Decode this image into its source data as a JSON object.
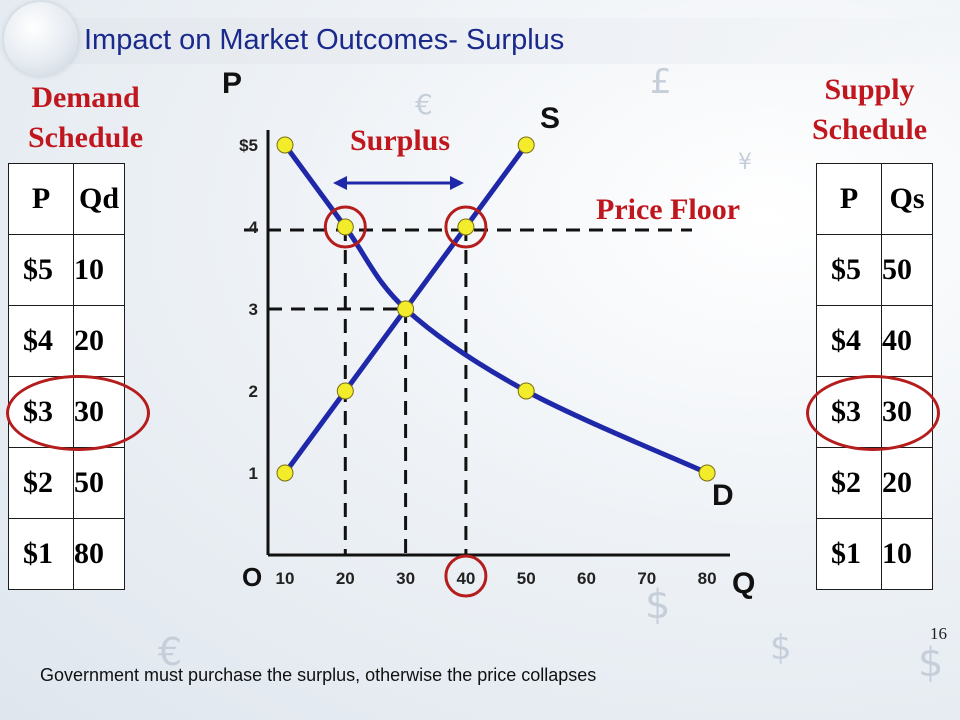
{
  "title": "Impact on Market Outcomes- Surplus",
  "demand_schedule": {
    "heading_line1": "Demand",
    "heading_line2": "Schedule",
    "columns": [
      "P",
      "Qd"
    ],
    "rows": [
      [
        "$5",
        "10"
      ],
      [
        "$4",
        "20"
      ],
      [
        "$3",
        "30"
      ],
      [
        "$2",
        "50"
      ],
      [
        "$1",
        "80"
      ]
    ]
  },
  "supply_schedule": {
    "heading_line1": "Supply",
    "heading_line2": "Schedule",
    "columns": [
      "P",
      "Qs"
    ],
    "rows": [
      [
        "$5",
        "50"
      ],
      [
        "$4",
        "40"
      ],
      [
        "$3",
        "30"
      ],
      [
        "$2",
        "20"
      ],
      [
        "$1",
        "10"
      ]
    ]
  },
  "chart_data": {
    "type": "line",
    "title": "",
    "ylabel": "P",
    "xlabel": "Q",
    "origin_label": "O",
    "xlim": [
      10,
      80
    ],
    "ylim": [
      0,
      5
    ],
    "x_ticks": [
      "10",
      "20",
      "30",
      "40",
      "50",
      "60",
      "70",
      "80"
    ],
    "y_ticks": [
      "1",
      "2",
      "3",
      "4",
      "$5"
    ],
    "series": [
      {
        "name": "S",
        "points": [
          [
            10,
            1
          ],
          [
            20,
            2
          ],
          [
            30,
            3
          ],
          [
            40,
            4
          ],
          [
            50,
            5
          ]
        ]
      },
      {
        "name": "D",
        "points": [
          [
            10,
            5
          ],
          [
            20,
            4
          ],
          [
            30,
            3
          ],
          [
            50,
            2
          ],
          [
            80,
            1
          ]
        ]
      }
    ],
    "equilibrium": {
      "q": 30,
      "p": 3
    },
    "price_floor": {
      "label": "Price Floor",
      "p": 4
    },
    "surplus": {
      "label": "Surplus",
      "q_from": 20,
      "q_to": 40
    }
  },
  "footer_text": "Government must purchase the surplus, otherwise the price collapses",
  "page_number": "16",
  "colors": {
    "curve": "#1f28a8",
    "point_fill": "#f2ec2a",
    "highlight": "#b51c1c",
    "title": "#1a2a8c",
    "heading": "#c0171e"
  }
}
